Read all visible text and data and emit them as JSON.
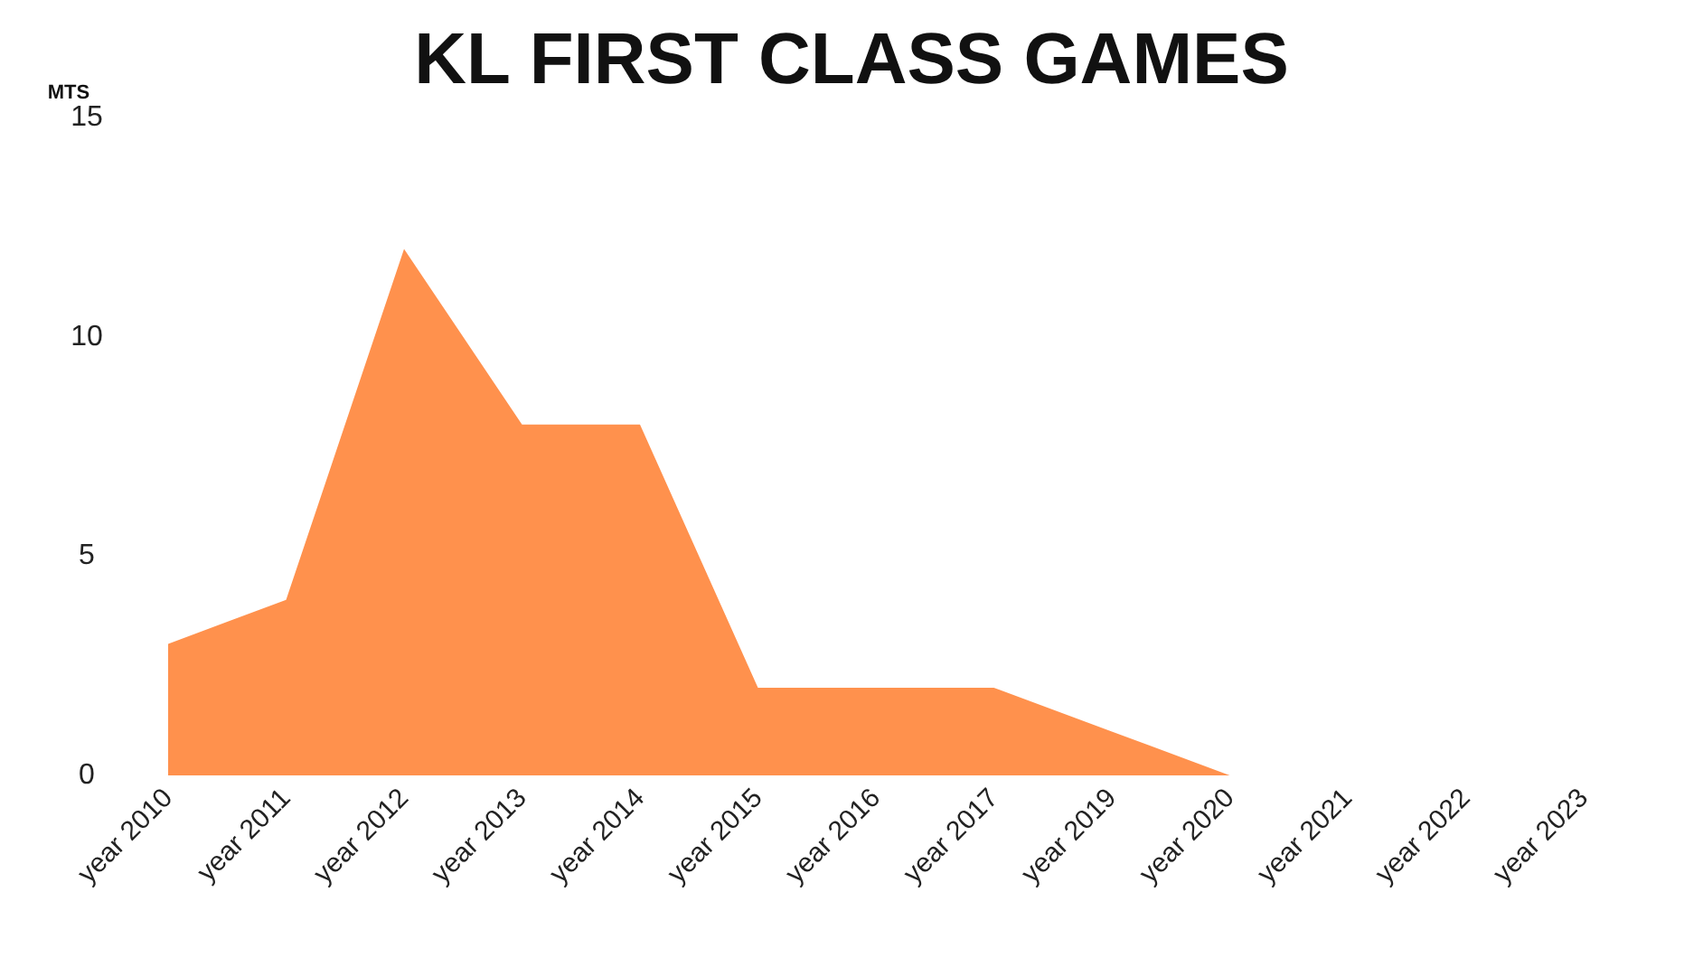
{
  "chart_data": {
    "type": "area",
    "title": "KL FIRST CLASS GAMES",
    "ylabel": "MTS",
    "categories": [
      "year 2010",
      "year 2011",
      "year 2012",
      "year 2013",
      "year 2014",
      "year 2015",
      "year 2016",
      "year 2017",
      "year 2019",
      "year 2020",
      "year 2021",
      "year 2022",
      "year 2023"
    ],
    "series": [
      {
        "color": "#ff914d",
        "values": [
          3,
          4,
          12,
          8,
          8,
          2,
          2,
          2,
          1,
          0,
          0,
          0,
          0
        ]
      }
    ],
    "ylim": [
      0,
      15
    ],
    "yticks": [
      0,
      5,
      10,
      15
    ],
    "grid": false
  }
}
